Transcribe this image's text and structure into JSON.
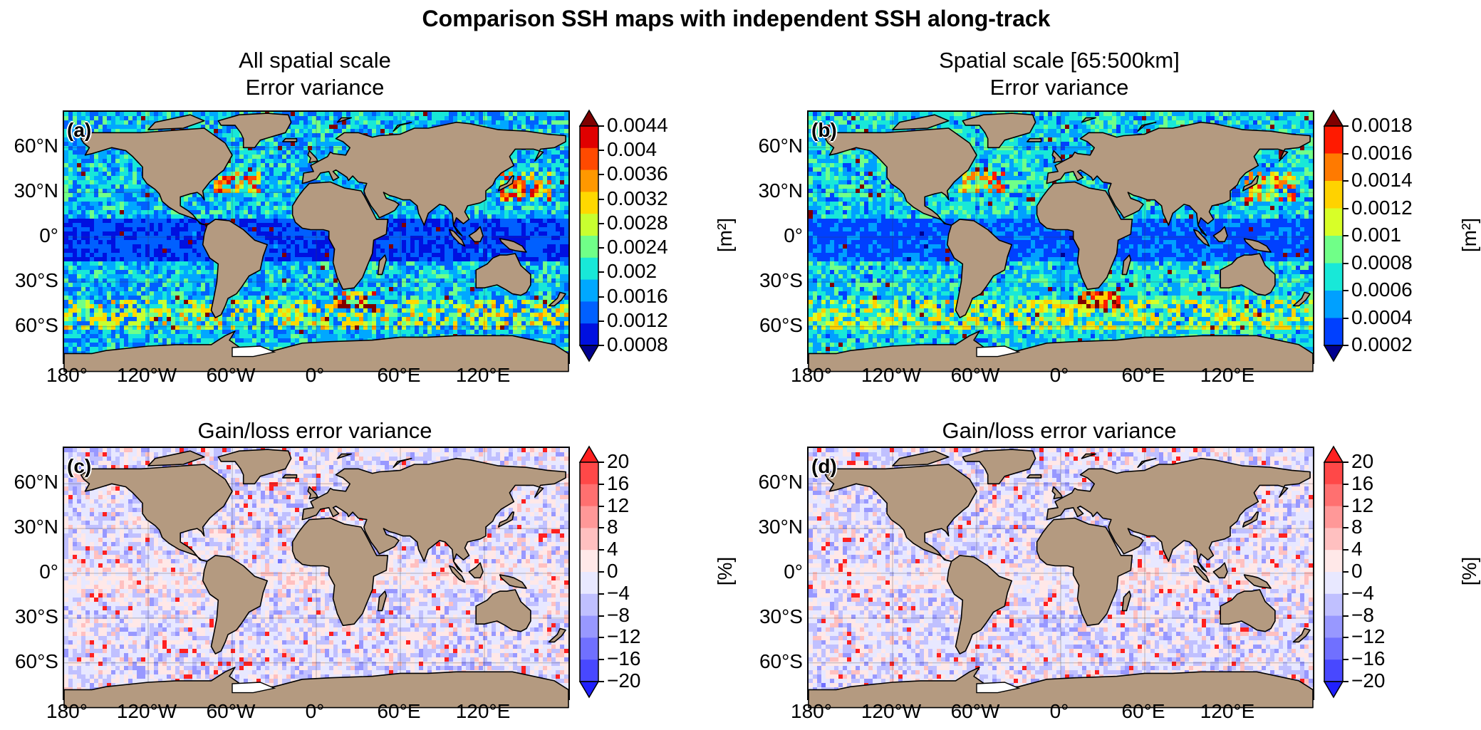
{
  "figure": {
    "suptitle": "Comparison SSH maps with independent SSH along-track",
    "lat_labels": [
      "60°N",
      "30°N",
      "0°",
      "30°S",
      "60°S"
    ],
    "lon_labels": [
      "180°",
      "120°W",
      "60°W",
      "0°",
      "60°E",
      "120°E"
    ],
    "land_color": "#b49a80",
    "panels": [
      {
        "id": "a",
        "label": "(a)",
        "title_line1": "All spatial scale",
        "title_line2": "Error variance",
        "colormap": "jet",
        "unit": "[m²]",
        "colorbar_ticks": [
          "0.0044",
          "0.004",
          "0.0036",
          "0.0032",
          "0.0028",
          "0.0024",
          "0.002",
          "0.0016",
          "0.0012",
          "0.0008"
        ],
        "colorbar_colors": [
          "#7f0000",
          "#e00000",
          "#ff4a00",
          "#ff9800",
          "#ffd800",
          "#c8ff30",
          "#70ff88",
          "#18e8d8",
          "#00a8ff",
          "#0060ff",
          "#0010e0",
          "#00008f"
        ]
      },
      {
        "id": "b",
        "label": "(b)",
        "title_line1": "Spatial scale [65:500km]",
        "title_line2": "Error variance",
        "colormap": "jet",
        "unit": "[m²]",
        "colorbar_ticks": [
          "0.0018",
          "0.0016",
          "0.0014",
          "0.0012",
          "0.001",
          "0.0008",
          "0.0006",
          "0.0004",
          "0.0002"
        ],
        "colorbar_colors": [
          "#7f0000",
          "#ff1a00",
          "#ff7a00",
          "#ffd200",
          "#d8ff28",
          "#70ff88",
          "#18e8d8",
          "#00a0ff",
          "#0040ff",
          "#00008f"
        ]
      },
      {
        "id": "c",
        "label": "(c)",
        "title_line1": "Gain/loss error variance",
        "title_line2": "",
        "colormap": "bwr",
        "unit": "[%]",
        "colorbar_ticks": [
          "20",
          "16",
          "12",
          "8",
          "4",
          "0",
          "−4",
          "−8",
          "−12",
          "−16",
          "−20"
        ],
        "colorbar_colors": [
          "#ff2020",
          "#ff4848",
          "#ff7070",
          "#ff9898",
          "#ffc0c0",
          "#ffe8e8",
          "#e8e8ff",
          "#c0c0ff",
          "#9898ff",
          "#7070ff",
          "#4848ff",
          "#2020ff"
        ]
      },
      {
        "id": "d",
        "label": "(d)",
        "title_line1": "Gain/loss error variance",
        "title_line2": "",
        "colormap": "bwr",
        "unit": "[%]",
        "colorbar_ticks": [
          "20",
          "16",
          "12",
          "8",
          "4",
          "0",
          "−4",
          "−8",
          "−12",
          "−16",
          "−20"
        ],
        "colorbar_colors": [
          "#ff2020",
          "#ff4848",
          "#ff7070",
          "#ff9898",
          "#ffc0c0",
          "#ffe8e8",
          "#e8e8ff",
          "#c0c0ff",
          "#9898ff",
          "#7070ff",
          "#4848ff",
          "#2020ff"
        ]
      }
    ]
  }
}
